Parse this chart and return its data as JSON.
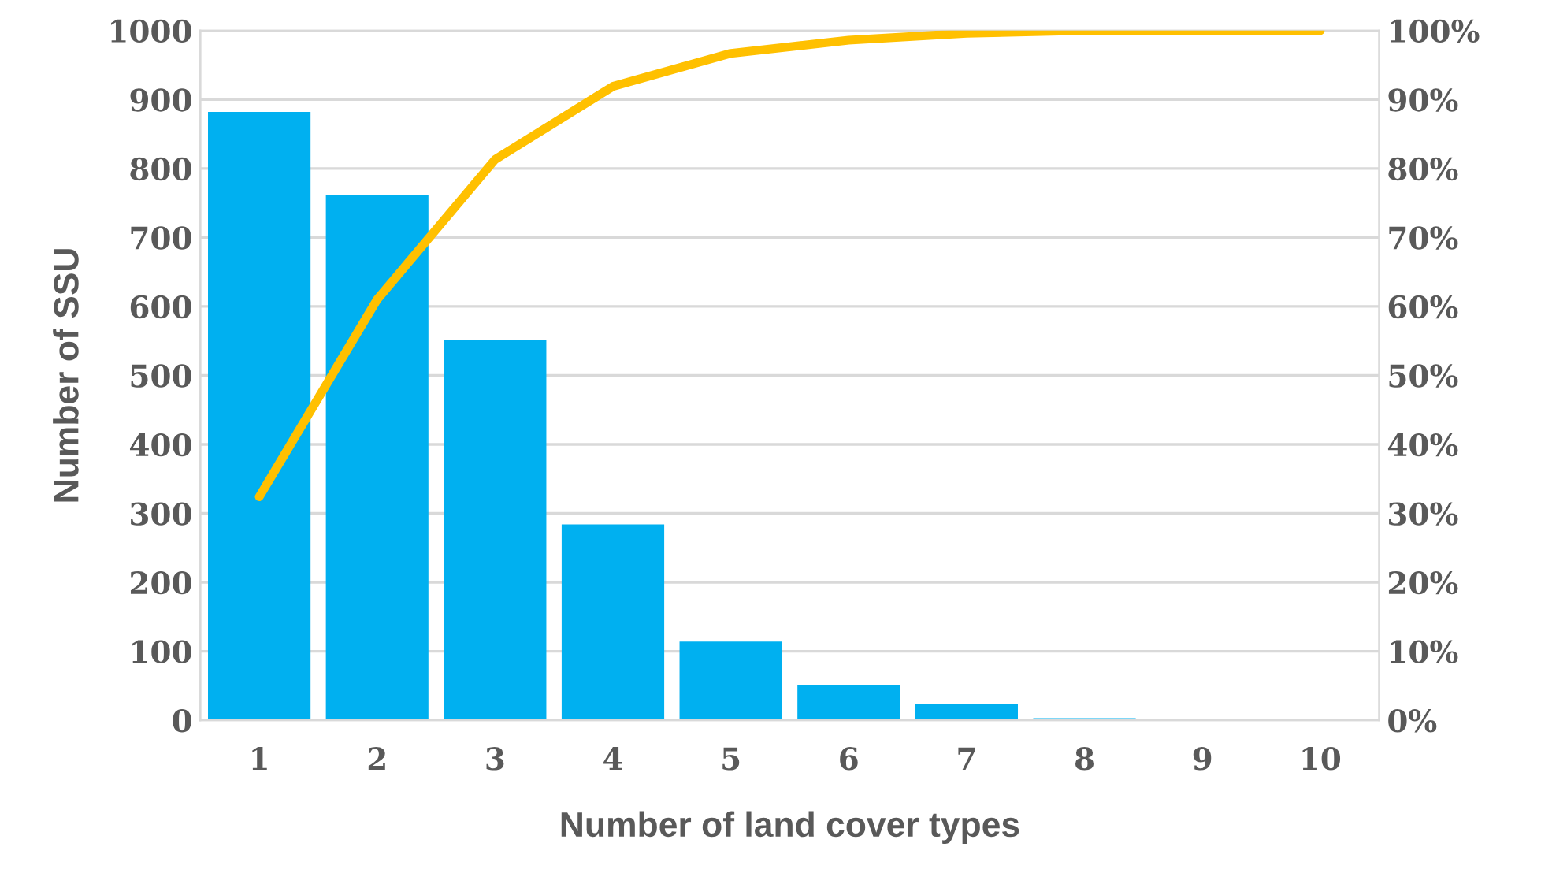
{
  "chart_data": {
    "type": "bar",
    "xlabel": "Number of land cover types",
    "ylabel": "Number of SSU",
    "categories": [
      "1",
      "2",
      "3",
      "4",
      "5",
      "6",
      "7",
      "8",
      "9",
      "10"
    ],
    "series": [
      {
        "color": "#00b0f0",
        "values": [
          882,
          762,
          551,
          284,
          114,
          51,
          23,
          3,
          0,
          0
        ]
      },
      {
        "type": "line",
        "axis": "y2",
        "color": "#ffc000",
        "values": [
          32.4,
          61,
          81.3,
          91.9,
          96.7,
          98.6,
          99.6,
          100,
          100,
          100
        ]
      }
    ],
    "ylim": [
      0,
      1000
    ],
    "yticks": [
      0,
      100,
      200,
      300,
      400,
      500,
      600,
      700,
      800,
      900,
      1000
    ],
    "y2lim": [
      0,
      100
    ],
    "y2ticks": [
      {
        "value": 0,
        "label": "0%"
      },
      {
        "value": 10,
        "label": "10%"
      },
      {
        "value": 20,
        "label": "20%"
      },
      {
        "value": 30,
        "label": "30%"
      },
      {
        "value": 40,
        "label": "40%"
      },
      {
        "value": 50,
        "label": "50%"
      },
      {
        "value": 60,
        "label": "60%"
      },
      {
        "value": 70,
        "label": "70%"
      },
      {
        "value": 80,
        "label": "80%"
      },
      {
        "value": 90,
        "label": "90%"
      },
      {
        "value": 100,
        "label": "100%"
      }
    ],
    "grid": "y",
    "marker": "none",
    "line_style": "solid"
  }
}
